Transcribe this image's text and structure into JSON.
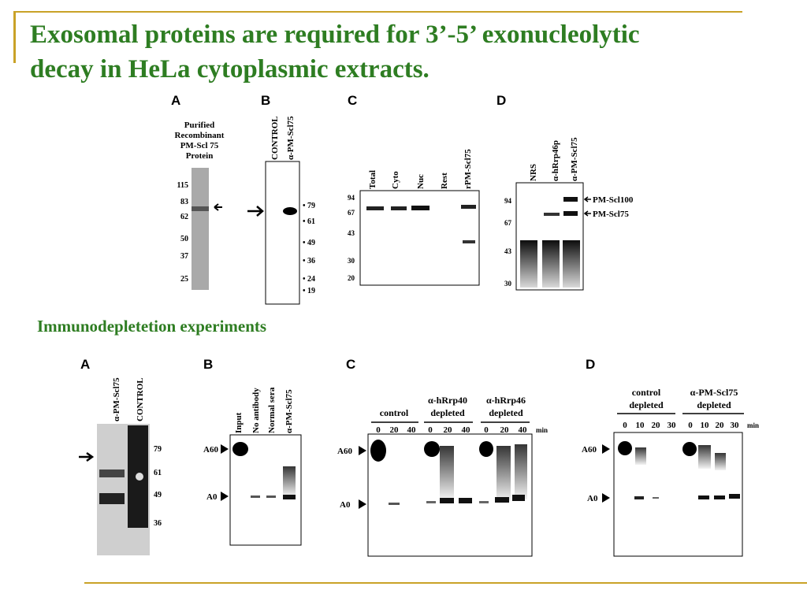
{
  "slide": {
    "title_line1": "Exosomal proteins are required for 3’-5’ exonucleolytic",
    "title_line2": "decay in HeLa cytoplasmic extracts.",
    "subtitle": "Immunodepletetion experiments"
  },
  "top": {
    "A": {
      "letter": "A",
      "caption": [
        "Purified",
        "Recombinant",
        "PM-Scl 75",
        "Protein"
      ],
      "markers": [
        "115",
        "83",
        "62",
        "50",
        "37",
        "25"
      ]
    },
    "B": {
      "letter": "B",
      "lanes": [
        "CONTROL",
        "α-PM-Scl75"
      ],
      "markers": [
        "• 79",
        "• 61",
        "• 49",
        "• 36",
        "• 24",
        "• 19"
      ]
    },
    "C": {
      "letter": "C",
      "lanes": [
        "Total",
        "Cyto",
        "Nuc",
        "Rest",
        "rPM-Scl75"
      ],
      "markers": [
        "94",
        "67",
        "43",
        "30",
        "20"
      ]
    },
    "D": {
      "letter": "D",
      "lanes": [
        "NRS",
        "α-hRrp46p",
        "α-PM-Scl75"
      ],
      "markers": [
        "94",
        "67",
        "43",
        "30"
      ],
      "bands": [
        "PM-Scl100",
        "PM-Scl75"
      ]
    }
  },
  "bottom": {
    "A": {
      "letter": "A",
      "lanes": [
        "α-PM-Scl75",
        "CONTROL"
      ],
      "markers": [
        "79",
        "61",
        "49",
        "36"
      ]
    },
    "B": {
      "letter": "B",
      "lanes": [
        "Input",
        "No antibody",
        "Normal sera",
        "α-PM-Scl75"
      ],
      "rows": [
        "A60",
        "A0"
      ]
    },
    "C": {
      "letter": "C",
      "groups": [
        "control",
        "α-hRrp40",
        "depleted",
        "α-hRrp46",
        "depleted"
      ],
      "times": [
        "0",
        "20",
        "40",
        "0",
        "20",
        "40",
        "0",
        "20",
        "40"
      ],
      "unit": "min",
      "rows": [
        "A60",
        "A0"
      ]
    },
    "D": {
      "letter": "D",
      "groups": [
        "control",
        "depleted",
        "α-PM-Scl75",
        "depleted"
      ],
      "times": [
        "0",
        "10",
        "20",
        "30",
        "0",
        "10",
        "20",
        "30"
      ],
      "unit": "min",
      "rows": [
        "A60",
        "A0"
      ]
    }
  }
}
